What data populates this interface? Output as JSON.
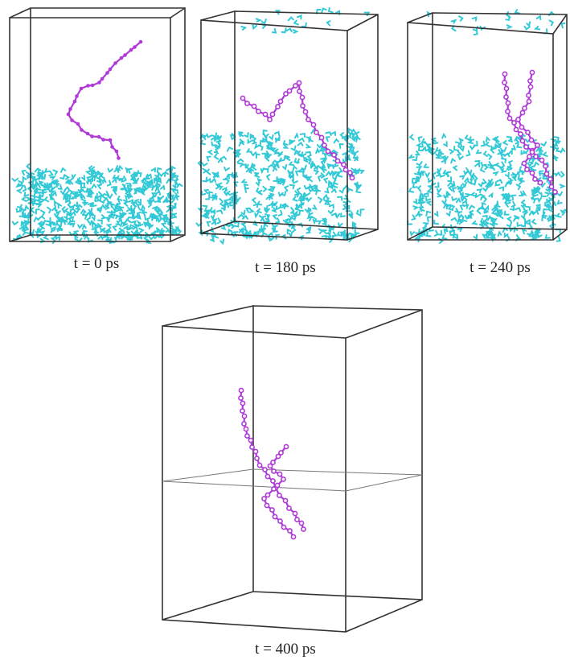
{
  "panels": [
    {
      "label": "t = 0 ps"
    },
    {
      "label": "t = 180 ps"
    },
    {
      "label": "t = 240 ps"
    },
    {
      "label": "t = 400 ps"
    }
  ]
}
